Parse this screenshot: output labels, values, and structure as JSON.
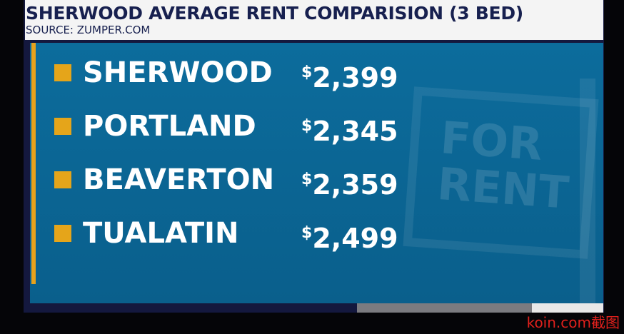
{
  "header": {
    "title": "SHERWOOD AVERAGE RENT COMPARISION (3 BED)",
    "source": "SOURCE: ZUMPER.COM"
  },
  "rows": [
    {
      "name": "SHERWOOD",
      "price": "$2,399"
    },
    {
      "name": "PORTLAND",
      "price": "$2,345"
    },
    {
      "name": "BEAVERTON",
      "price": "$2,359"
    },
    {
      "name": "TUALATIN",
      "price": "$2,499"
    }
  ],
  "sign": {
    "line1": "FOR",
    "line2": "RENT"
  },
  "watermark": "koin.com截图"
}
